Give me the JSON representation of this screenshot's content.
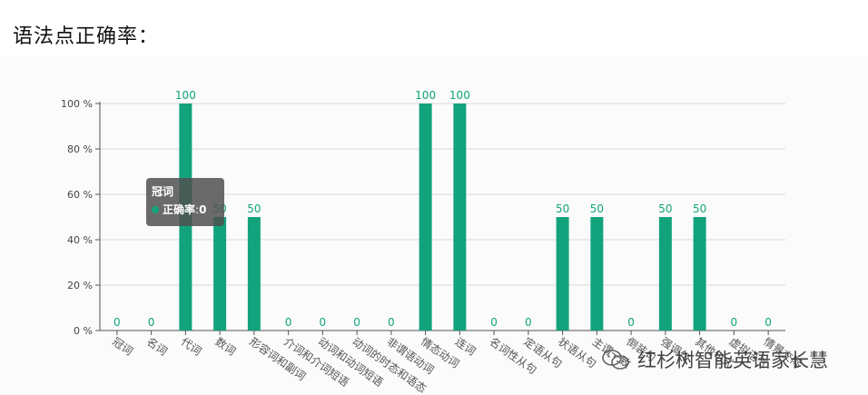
{
  "page": {
    "title": "语法点正确率："
  },
  "chart_data": {
    "type": "bar",
    "categories": [
      "冠词",
      "名词",
      "代词",
      "数词",
      "形容词和副词",
      "介词和介词短语",
      "动词和动词短语",
      "动词的时态和语态",
      "非谓语动词",
      "情态动词",
      "连词",
      "名词性从句",
      "定语从句",
      "状语从句",
      "主谓一致",
      "倒装句",
      "强调句",
      "其他句式",
      "虚拟语气",
      "情景交际"
    ],
    "series": [
      {
        "name": "正确率",
        "values": [
          0,
          0,
          100,
          50,
          50,
          0,
          0,
          0,
          0,
          100,
          100,
          0,
          0,
          50,
          50,
          0,
          50,
          50,
          0,
          0
        ]
      }
    ],
    "ylim": [
      0,
      100
    ],
    "yticks": [
      "0 %",
      "20 %",
      "40 %",
      "60 %",
      "80 %",
      "100 %"
    ],
    "grid": true,
    "colors": {
      "bar": "#12a37c",
      "label": "#12a37c",
      "axis": "#555555",
      "grid": "#d9d9d9"
    }
  },
  "tooltip": {
    "title": "冠词",
    "series_label": "正确率",
    "separator": ":",
    "value": "0",
    "dot_color": "#12a37c"
  },
  "watermark": {
    "text": "红杉树智能英语家长慧",
    "icon": "wechat-icon"
  }
}
